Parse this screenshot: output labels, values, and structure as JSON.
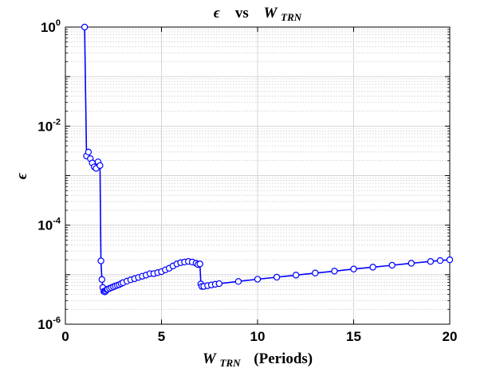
{
  "colors": {
    "series": "#0000ff",
    "major_grid": "#d4d4d4",
    "minor_grid": "#c4c4c4",
    "axes": "#000000"
  },
  "chart_data": {
    "type": "line",
    "title": {
      "epsilon": "ϵ",
      "vs": "vs",
      "w": "W",
      "sub": "TRN"
    },
    "xlabel": {
      "w": "W",
      "sub": "TRN",
      "unit": "(Periods)"
    },
    "ylabel": "ϵ",
    "xlim": [
      0,
      20
    ],
    "ylim": [
      1e-06,
      1
    ],
    "yscale": "log",
    "grid": "on (major and minor)",
    "legend": "none",
    "marker": "open circle",
    "xticks": [
      "0",
      "5",
      "10",
      "15",
      "20"
    ],
    "yticks": [
      {
        "base": "10",
        "exp": "-6"
      },
      {
        "base": "10",
        "exp": "-4"
      },
      {
        "base": "10",
        "exp": "-2"
      },
      {
        "base": "10",
        "exp": "0"
      }
    ],
    "series": [
      {
        "x": [
          1.0,
          1.1,
          1.2,
          1.3,
          1.4,
          1.5,
          1.6,
          1.7,
          1.8,
          1.85,
          1.9,
          1.95,
          2.0,
          2.05,
          2.1,
          2.15,
          2.2,
          2.3,
          2.4,
          2.5,
          2.6,
          2.7,
          2.8,
          2.9,
          3.0,
          3.2,
          3.4,
          3.6,
          3.8,
          4.0,
          4.2,
          4.4,
          4.6,
          4.8,
          5.0,
          5.2,
          5.4,
          5.6,
          5.8,
          6.0,
          6.2,
          6.4,
          6.6,
          6.8,
          6.9,
          7.0,
          7.05,
          7.1,
          7.2,
          7.4,
          7.6,
          7.8,
          8.0,
          9.0,
          10.0,
          11.0,
          12.0,
          13.0,
          14.0,
          15.0,
          16.0,
          17.0,
          18.0,
          19.0,
          19.5,
          20.0
        ],
        "y": [
          1.0,
          0.0025,
          0.003,
          0.0022,
          0.0018,
          0.0015,
          0.0014,
          0.0019,
          0.0016,
          1.9e-05,
          8e-06,
          5.5e-06,
          4.6e-06,
          4.5e-06,
          4.7e-06,
          5e-06,
          5.1e-06,
          5.3e-06,
          5.5e-06,
          5.7e-06,
          5.9e-06,
          6.1e-06,
          6.3e-06,
          6.6e-06,
          6.9e-06,
          7.4e-06,
          7.9e-06,
          8.3e-06,
          8.8e-06,
          9.3e-06,
          9.8e-06,
          1.05e-05,
          1.05e-05,
          1.1e-05,
          1.15e-05,
          1.25e-05,
          1.35e-05,
          1.5e-05,
          1.65e-05,
          1.75e-05,
          1.8e-05,
          1.85e-05,
          1.8e-05,
          1.7e-05,
          1.6e-05,
          1.65e-05,
          6.5e-06,
          5.8e-06,
          5.8e-06,
          6e-06,
          6.2e-06,
          6.4e-06,
          6.6e-06,
          7.3e-06,
          8.1e-06,
          8.9e-06,
          9.8e-06,
          1.08e-05,
          1.18e-05,
          1.3e-05,
          1.42e-05,
          1.55e-05,
          1.7e-05,
          1.85e-05,
          1.93e-05,
          2e-05
        ]
      }
    ]
  }
}
